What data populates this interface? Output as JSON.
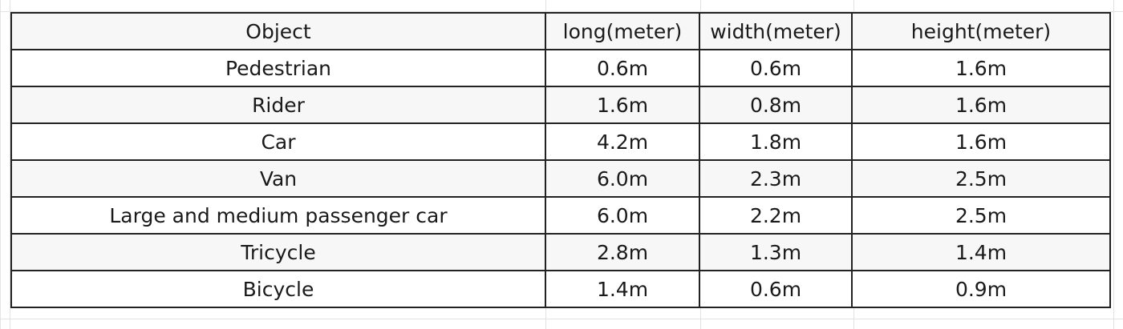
{
  "table": {
    "headers": [
      "Object",
      "long(meter)",
      "width(meter)",
      "height(meter)"
    ],
    "rows": [
      [
        "Pedestrian",
        "0.6m",
        "0.6m",
        "1.6m"
      ],
      [
        "Rider",
        "1.6m",
        "0.8m",
        "1.6m"
      ],
      [
        "Car",
        "4.2m",
        "1.8m",
        "1.6m"
      ],
      [
        "Van",
        "6.0m",
        "2.3m",
        "2.5m"
      ],
      [
        "Large and medium passenger car",
        "6.0m",
        "2.2m",
        "2.5m"
      ],
      [
        "Tricycle",
        "2.8m",
        "1.3m",
        "1.4m"
      ],
      [
        "Bicycle",
        "1.4m",
        "0.6m",
        "0.9m"
      ]
    ]
  }
}
